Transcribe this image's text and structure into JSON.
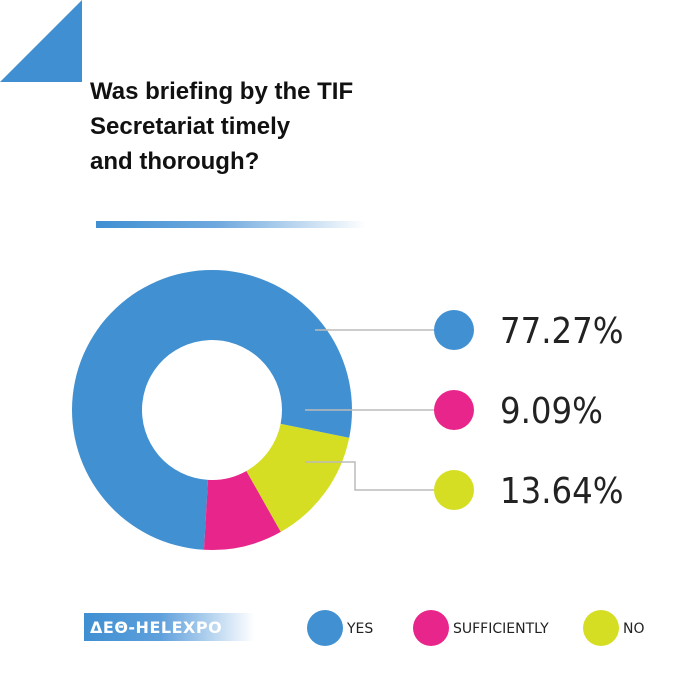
{
  "title_lines": [
    "Was briefing by the TIF",
    "Secretariat timely",
    "and thorough?"
  ],
  "brand": "ΔΕΘ-HELEXPO",
  "colors": {
    "yes": "#4190d1",
    "sufficiently": "#e8258b",
    "no": "#d6de24",
    "accent": "#3f8fd2"
  },
  "chart_data": {
    "type": "pie",
    "style": "donut",
    "categories": [
      "YES",
      "SUFFICIENTLY",
      "NO"
    ],
    "values": [
      77.27,
      9.09,
      13.64
    ],
    "value_labels": [
      "77.27%",
      "9.09%",
      "13.64%"
    ],
    "title": "Was briefing by the TIF Secretariat timely and thorough?",
    "legend_placement": "bottom"
  }
}
